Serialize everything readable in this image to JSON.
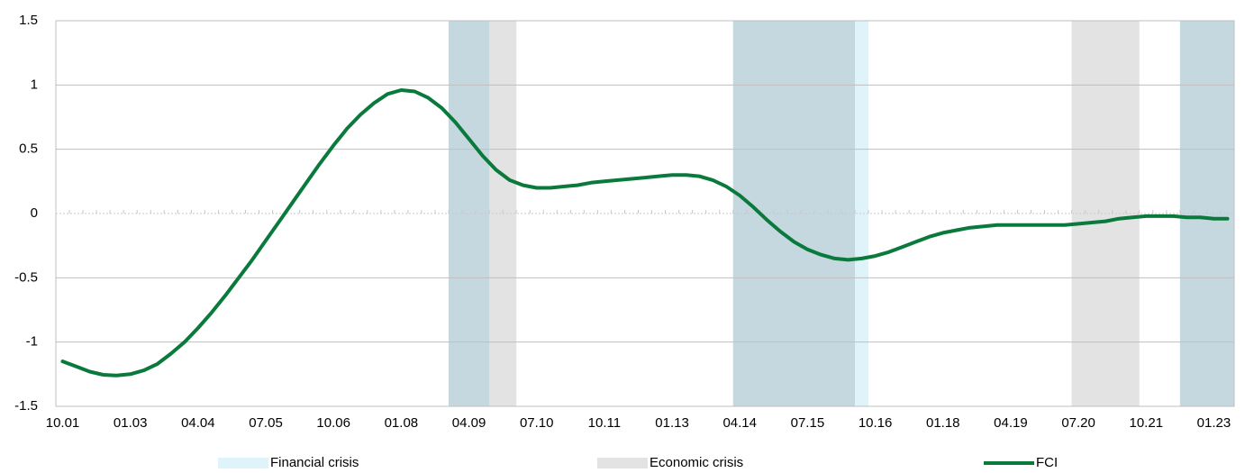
{
  "chart_data": {
    "type": "line",
    "categories": [
      "10.01",
      null,
      null,
      null,
      null,
      "01.03",
      null,
      null,
      null,
      null,
      "04.04",
      null,
      null,
      null,
      null,
      "07.05",
      null,
      null,
      null,
      null,
      "10.06",
      null,
      null,
      null,
      null,
      "01.08",
      null,
      null,
      null,
      null,
      "04.09",
      null,
      null,
      null,
      null,
      "07.10",
      null,
      null,
      null,
      null,
      "10.11",
      null,
      null,
      null,
      null,
      "01.13",
      null,
      null,
      null,
      null,
      "04.14",
      null,
      null,
      null,
      null,
      "07.15",
      null,
      null,
      null,
      null,
      "10.16",
      null,
      null,
      null,
      null,
      "01.18",
      null,
      null,
      null,
      null,
      "04.19",
      null,
      null,
      null,
      null,
      "07.20",
      null,
      null,
      null,
      null,
      "10.21",
      null,
      null,
      null,
      null,
      "01.23",
      null
    ],
    "series": [
      {
        "name": "FCI",
        "color": "#0a7a3c",
        "values": [
          -1.15,
          -1.19,
          -1.23,
          -1.255,
          -1.26,
          -1.25,
          -1.22,
          -1.17,
          -1.09,
          -1.0,
          -0.89,
          -0.77,
          -0.64,
          -0.5,
          -0.36,
          -0.21,
          -0.06,
          0.09,
          0.24,
          0.39,
          0.53,
          0.66,
          0.77,
          0.86,
          0.93,
          0.96,
          0.95,
          0.9,
          0.82,
          0.71,
          0.58,
          0.45,
          0.34,
          0.26,
          0.22,
          0.2,
          0.2,
          0.21,
          0.22,
          0.24,
          0.25,
          0.26,
          0.27,
          0.28,
          0.29,
          0.3,
          0.3,
          0.29,
          0.26,
          0.21,
          0.14,
          0.05,
          -0.05,
          -0.14,
          -0.22,
          -0.28,
          -0.32,
          -0.35,
          -0.36,
          -0.35,
          -0.33,
          -0.3,
          -0.26,
          -0.22,
          -0.18,
          -0.15,
          -0.13,
          -0.11,
          -0.1,
          -0.09,
          -0.09,
          -0.09,
          -0.09,
          -0.09,
          -0.09,
          -0.08,
          -0.07,
          -0.06,
          -0.04,
          -0.03,
          -0.02,
          -0.02,
          -0.02,
          -0.03,
          -0.03,
          -0.04,
          -0.04
        ]
      }
    ],
    "periods": [
      {
        "name": "Financial crisis",
        "color": "#dff3fb",
        "ranges": [
          [
            29,
            31
          ],
          [
            50,
            59
          ],
          [
            83,
            86
          ]
        ]
      },
      {
        "name": "Economic crisis",
        "color": "#e3e3e3",
        "ranges": [
          [
            29,
            33
          ],
          [
            50,
            58
          ],
          [
            75,
            79
          ],
          [
            83,
            86
          ]
        ]
      }
    ],
    "ylim": [
      -1.5,
      1.5
    ],
    "yticks": [
      1.5,
      1,
      0.5,
      0,
      -0.5,
      -1,
      -1.5
    ],
    "grid": true
  }
}
